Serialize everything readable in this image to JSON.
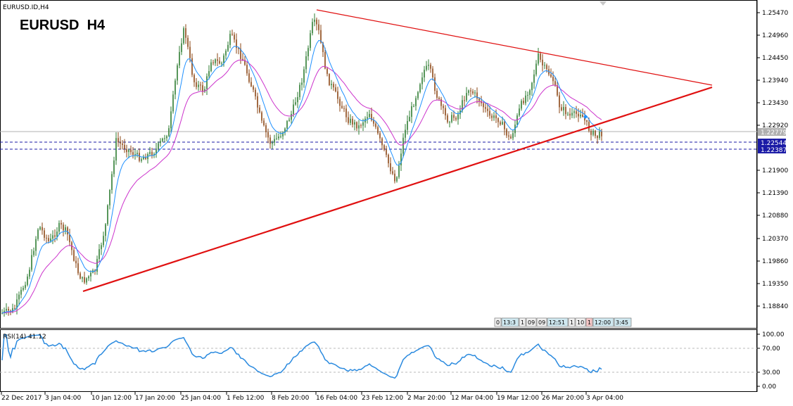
{
  "symbol_label": "EURUSD.ID,H4",
  "title": "EURUSD  H4",
  "colors": {
    "bull": "#2e7d32",
    "bear": "#8b4513",
    "ma_fast": "#1e90ff",
    "ma_slow": "#cc33cc",
    "trend": "#e01010",
    "rsi": "#2a8adf",
    "hline": "#1a1aa6",
    "current": "#b0b0b0"
  },
  "price_axis": {
    "ticks": [
      "1.25470",
      "1.24960",
      "1.24450",
      "1.23940",
      "1.23430",
      "1.22920",
      "1.21900",
      "1.21390",
      "1.20880",
      "1.20370",
      "1.19860",
      "1.19350",
      "1.18840"
    ],
    "current_price": "1.22779",
    "level_1": "1.22544",
    "level_2": "1.22387"
  },
  "time_axis": [
    "22 Dec 2017",
    "3 Jan 04:00",
    "10 Jan 12:00",
    "17 Jan 20:00",
    "25 Jan 04:00",
    "1 Feb 12:00",
    "8 Feb 20:00",
    "16 Feb 04:00",
    "23 Feb 12:00",
    "2 Mar 20:00",
    "12 Mar 04:00",
    "19 Mar 12:00",
    "26 Mar 20:00",
    "3 Apr 04:00"
  ],
  "rsi": {
    "label": "RSI(14) 41.12",
    "ticks": [
      "100.00",
      "70.00",
      "30.00",
      "0.00"
    ]
  },
  "mini_tabs": [
    "0",
    "13:3",
    "1",
    "09",
    "09",
    "12:51",
    "1",
    "10",
    "1",
    "12:00",
    "3:45"
  ]
}
